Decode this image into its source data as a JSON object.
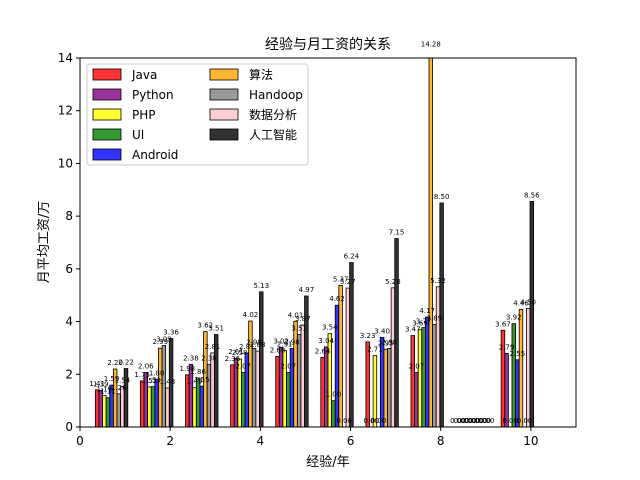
{
  "chart_data": {
    "type": "bar",
    "title": "经验与月工资的关系",
    "xlabel": "经验/年",
    "ylabel": "月平均工资/万",
    "xlim": [
      0,
      11
    ],
    "ylim": [
      0,
      14
    ],
    "xticks": [
      0,
      2,
      4,
      6,
      8,
      10
    ],
    "yticks": [
      0,
      2,
      4,
      6,
      8,
      10,
      12,
      14
    ],
    "grid": false,
    "legend_position": "upper-left",
    "legend_columns": 2,
    "experience_groups": [
      0.7,
      1.7,
      2.7,
      3.7,
      4.7,
      5.7,
      6.7,
      7.7,
      8.7,
      9.7
    ],
    "series": [
      {
        "name": "Java",
        "color": "#ff0000",
        "values": [
          1.41,
          1.75,
          1.98,
          2.36,
          2.68,
          2.64,
          3.23,
          3.47,
          0.0,
          3.67
        ]
      },
      {
        "name": "Python",
        "color": "#800080",
        "values": [
          1.39,
          2.06,
          2.38,
          2.61,
          3.02,
          3.04,
          0.0,
          2.07,
          0.0,
          2.79
        ]
      },
      {
        "name": "PHP",
        "color": "#ffff00",
        "values": [
          1.19,
          1.52,
          1.49,
          2.58,
          2.91,
          3.54,
          2.71,
          3.69,
          0.0,
          0.0
        ]
      },
      {
        "name": "UI",
        "color": "#008000",
        "values": [
          1.11,
          1.53,
          1.86,
          2.07,
          2.07,
          1.0,
          0.0,
          3.77,
          0.0,
          3.92
        ]
      },
      {
        "name": "Android",
        "color": "#0000ff",
        "values": [
          1.59,
          1.8,
          1.55,
          2.81,
          2.98,
          4.62,
          3.4,
          4.17,
          0.0,
          2.55
        ]
      },
      {
        "name": "算法",
        "color": "#ffa500",
        "values": [
          2.2,
          2.99,
          3.62,
          4.02,
          4.01,
          5.37,
          2.95,
          14.28,
          0.0,
          4.46
        ]
      },
      {
        "name": "Handoop",
        "color": "#808080",
        "values": [
          1.26,
          3.09,
          2.38,
          2.98,
          3.51,
          0.0,
          2.98,
          3.89,
          0.0,
          0.0
        ]
      },
      {
        "name": "数据分析",
        "color": "#ffc0cb",
        "values": [
          1.54,
          1.48,
          2.81,
          2.88,
          3.87,
          5.27,
          5.28,
          5.32,
          0.0,
          4.5
        ]
      },
      {
        "name": "人工智能",
        "color": "#000000",
        "values": [
          2.22,
          3.36,
          3.51,
          5.13,
          4.97,
          6.24,
          7.15,
          8.5,
          0.0,
          8.56
        ]
      }
    ]
  }
}
